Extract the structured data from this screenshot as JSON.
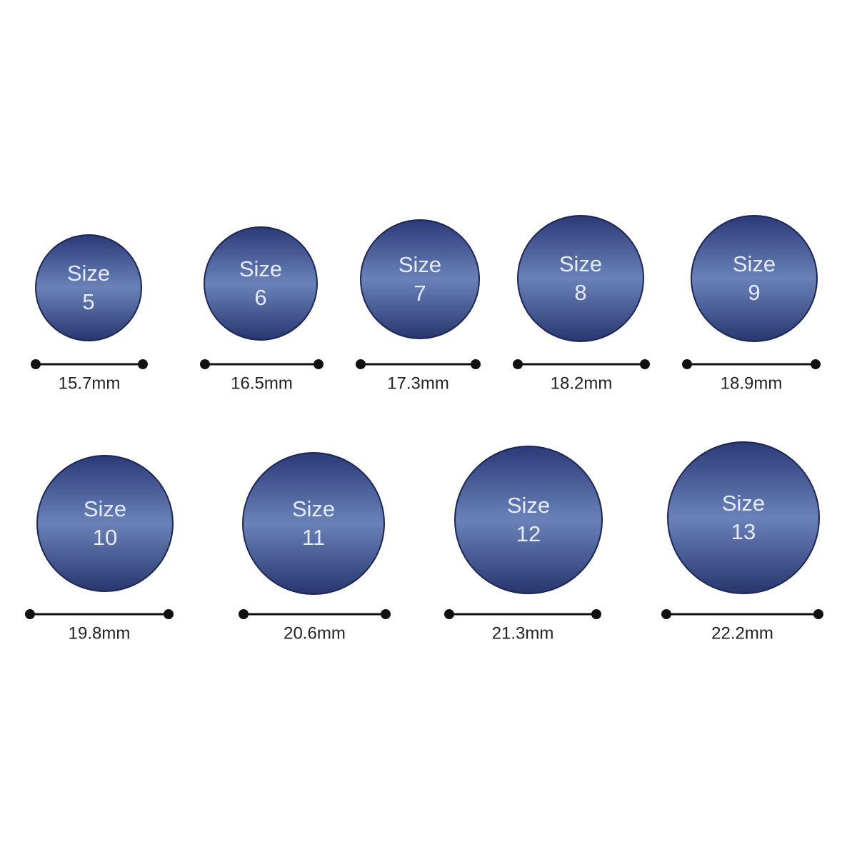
{
  "rings": [
    {
      "label": "Size",
      "size": "5",
      "diameter": "15.7mm"
    },
    {
      "label": "Size",
      "size": "6",
      "diameter": "16.5mm"
    },
    {
      "label": "Size",
      "size": "7",
      "diameter": "17.3mm"
    },
    {
      "label": "Size",
      "size": "8",
      "diameter": "18.2mm"
    },
    {
      "label": "Size",
      "size": "9",
      "diameter": "18.9mm"
    },
    {
      "label": "Size",
      "size": "10",
      "diameter": "19.8mm"
    },
    {
      "label": "Size",
      "size": "11",
      "diameter": "20.6mm"
    },
    {
      "label": "Size",
      "size": "12",
      "diameter": "21.3mm"
    },
    {
      "label": "Size",
      "size": "13",
      "diameter": "22.2mm"
    }
  ]
}
